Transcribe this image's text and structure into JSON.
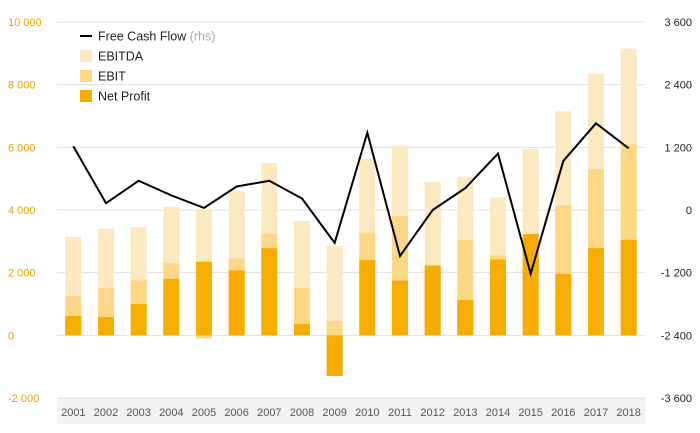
{
  "chart_data": {
    "type": "bar",
    "subtype": "overlapping bars with line on secondary axis",
    "categories": [
      "2001",
      "2002",
      "2003",
      "2004",
      "2005",
      "2006",
      "2007",
      "2008",
      "2009",
      "2010",
      "2011",
      "2012",
      "2013",
      "2014",
      "2015",
      "2016",
      "2017",
      "2018"
    ],
    "series": [
      {
        "name": "EBITDA",
        "type": "bar",
        "axis": "left",
        "color": "#fde9c0",
        "values": [
          3150,
          3400,
          3450,
          4100,
          4000,
          4600,
          5500,
          3650,
          2850,
          5650,
          6050,
          4900,
          5050,
          4400,
          5950,
          7150,
          8350,
          9150
        ]
      },
      {
        "name": "EBIT",
        "type": "bar",
        "axis": "left",
        "color": "#fcd786",
        "values": [
          1250,
          1520,
          1750,
          2300,
          -100,
          2450,
          3250,
          1520,
          450,
          3280,
          3800,
          2200,
          3050,
          2550,
          2900,
          4150,
          5300,
          6100
        ]
      },
      {
        "name": "Net Profit",
        "type": "bar",
        "axis": "left",
        "color": "#f6ad00",
        "values": [
          620,
          580,
          1000,
          1800,
          2350,
          2070,
          2780,
          360,
          -1300,
          2400,
          1750,
          2230,
          1130,
          2420,
          3230,
          1960,
          2780,
          3050
        ]
      },
      {
        "name": "Free Cash Flow",
        "name_note": "(rhs)",
        "type": "line",
        "axis": "right",
        "color": "#000000",
        "values": [
          1220,
          130,
          560,
          280,
          40,
          450,
          560,
          220,
          -630,
          1480,
          -880,
          0,
          420,
          1080,
          -1220,
          940,
          1660,
          1180
        ]
      }
    ],
    "ylim_left": [
      -2000,
      10000
    ],
    "ylim_right": [
      -3600,
      3600
    ],
    "yticks_left": [
      "-2 000",
      "0",
      "2 000",
      "4 000",
      "6 000",
      "8 000",
      "10 000"
    ],
    "yticks_right": [
      "-3 600",
      "-2 400",
      "-1 200",
      "0",
      "1 200",
      "2 400",
      "3 600"
    ],
    "title": "",
    "xlabel": "",
    "ylabel": "",
    "legend_position": "top-left",
    "grid": "horizontal",
    "colors": {
      "left_axis_text": "#e8a300",
      "right_axis_text": "#222222",
      "grid": "#e0e0e0",
      "x_band": "#f2f2f2"
    }
  }
}
